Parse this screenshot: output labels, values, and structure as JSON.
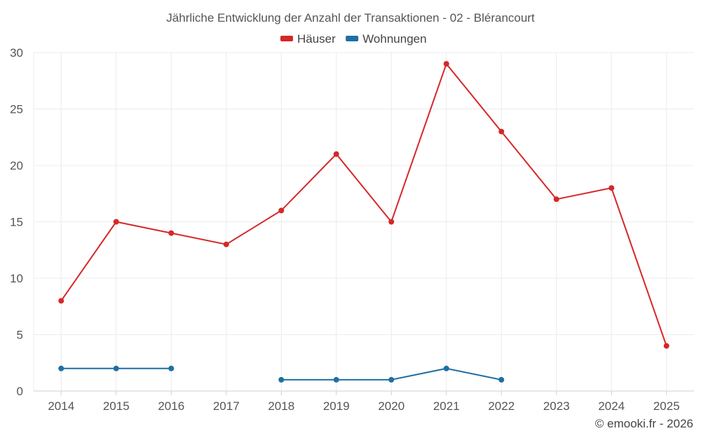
{
  "chart_data": {
    "type": "line",
    "title": "Jährliche Entwicklung der Anzahl der Transaktionen - 02 - Blérancourt",
    "x": [
      2014,
      2015,
      2016,
      2017,
      2018,
      2019,
      2020,
      2021,
      2022,
      2023,
      2024,
      2025
    ],
    "ylim": [
      0,
      30
    ],
    "yticks": [
      0,
      5,
      10,
      15,
      20,
      25,
      30
    ],
    "grid": true,
    "legend_position": "top-center",
    "series": [
      {
        "name": "Häuser",
        "color": "#d62728",
        "values": [
          8,
          15,
          14,
          13,
          16,
          21,
          15,
          29,
          23,
          17,
          18,
          4
        ]
      },
      {
        "name": "Wohnungen",
        "color": "#1f6fa3",
        "values": [
          2,
          2,
          2,
          null,
          1,
          1,
          1,
          2,
          1,
          null,
          null,
          null
        ]
      }
    ]
  },
  "credit": "© emooki.fr - 2026"
}
